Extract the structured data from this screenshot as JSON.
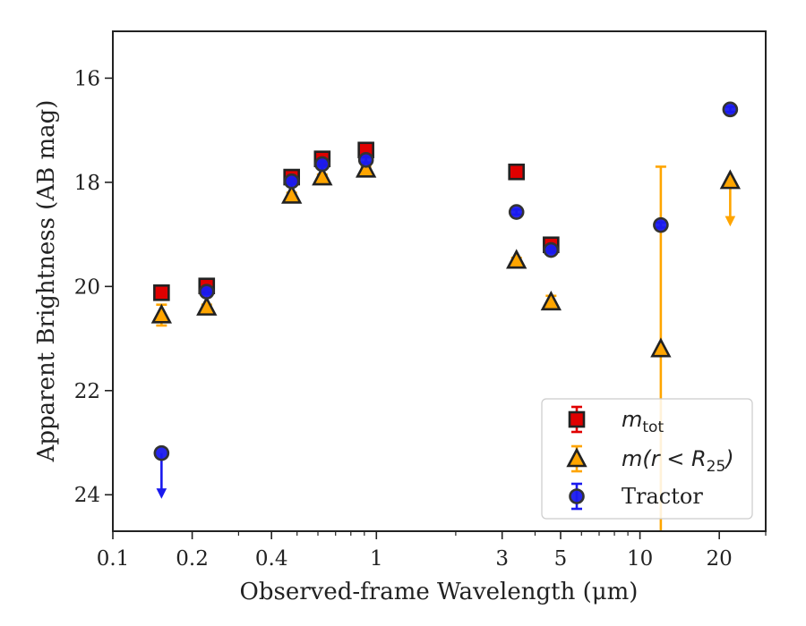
{
  "chart_data": {
    "type": "scatter",
    "title": "",
    "xlabel": "Observed-frame Wavelength (μm)",
    "ylabel": "Apparent Brightness (AB mag)",
    "xscale": "log",
    "xlim": [
      0.1,
      30
    ],
    "ylim": [
      24.7,
      15.1
    ],
    "y_inverted": true,
    "grid": false,
    "legend_position": "lower-right",
    "x_ticks": [
      {
        "value": 0.1,
        "label": "0.1"
      },
      {
        "value": 0.2,
        "label": "0.2"
      },
      {
        "value": 0.4,
        "label": "0.4"
      },
      {
        "value": 1,
        "label": "1"
      },
      {
        "value": 3,
        "label": "3"
      },
      {
        "value": 5,
        "label": "5"
      },
      {
        "value": 10,
        "label": "10"
      },
      {
        "value": 20,
        "label": "20"
      }
    ],
    "y_ticks": [
      {
        "value": 16,
        "label": "16"
      },
      {
        "value": 18,
        "label": "18"
      },
      {
        "value": 20,
        "label": "20"
      },
      {
        "value": 22,
        "label": "22"
      },
      {
        "value": 24,
        "label": "24"
      }
    ],
    "series": [
      {
        "name": "m_tot",
        "legend_main": "m",
        "legend_sub": "tot",
        "marker": "square",
        "color": "#e00000",
        "edge_color": "#222222",
        "err_color": "#e00000",
        "points": [
          {
            "x": 0.153,
            "y": 20.12,
            "err": 0.05
          },
          {
            "x": 0.227,
            "y": 19.99,
            "err": 0.05
          },
          {
            "x": 0.477,
            "y": 17.9,
            "err": 0.05
          },
          {
            "x": 0.623,
            "y": 17.55,
            "err": 0.05
          },
          {
            "x": 0.913,
            "y": 17.38,
            "err": 0.05
          },
          {
            "x": 3.4,
            "y": 17.8,
            "err": 0.05
          },
          {
            "x": 4.6,
            "y": 19.2,
            "err": 0.05
          }
        ]
      },
      {
        "name": "m(r<R_25)",
        "legend_main": "m(r < R",
        "legend_sub": "25",
        "legend_tail": ")",
        "marker": "triangle",
        "color": "#ffa500",
        "edge_color": "#222222",
        "err_color": "#ffa500",
        "points": [
          {
            "x": 0.153,
            "y": 20.55,
            "err": 0.2
          },
          {
            "x": 0.227,
            "y": 20.4,
            "err": 0.05
          },
          {
            "x": 0.477,
            "y": 18.25,
            "err": 0.05
          },
          {
            "x": 0.623,
            "y": 17.9,
            "err": 0.05
          },
          {
            "x": 0.913,
            "y": 17.75,
            "err": 0.05
          },
          {
            "x": 3.4,
            "y": 19.5,
            "err": 0.05
          },
          {
            "x": 4.6,
            "y": 20.3,
            "err": 0.12
          },
          {
            "x": 12.0,
            "y": 21.2,
            "err_low": 4.3,
            "err_high": 3.5
          },
          {
            "x": 22.0,
            "y": 17.97,
            "upper_limit": true
          }
        ]
      },
      {
        "name": "Tractor",
        "legend_main": "Tractor",
        "marker": "circle",
        "color": "#1a1aee",
        "edge_color": "#333333",
        "err_color": "#1a1aee",
        "points": [
          {
            "x": 0.153,
            "y": 23.2,
            "upper_limit": true
          },
          {
            "x": 0.227,
            "y": 20.1,
            "err": 0.05
          },
          {
            "x": 0.477,
            "y": 17.98,
            "err": 0.05
          },
          {
            "x": 0.623,
            "y": 17.65,
            "err": 0.05
          },
          {
            "x": 0.913,
            "y": 17.57,
            "err": 0.05
          },
          {
            "x": 3.4,
            "y": 18.57,
            "err": 0.05
          },
          {
            "x": 4.6,
            "y": 19.3,
            "err": 0.05
          },
          {
            "x": 12.0,
            "y": 18.82,
            "err": 0.05
          },
          {
            "x": 22.0,
            "y": 16.6,
            "err": 0.05
          }
        ]
      }
    ]
  }
}
